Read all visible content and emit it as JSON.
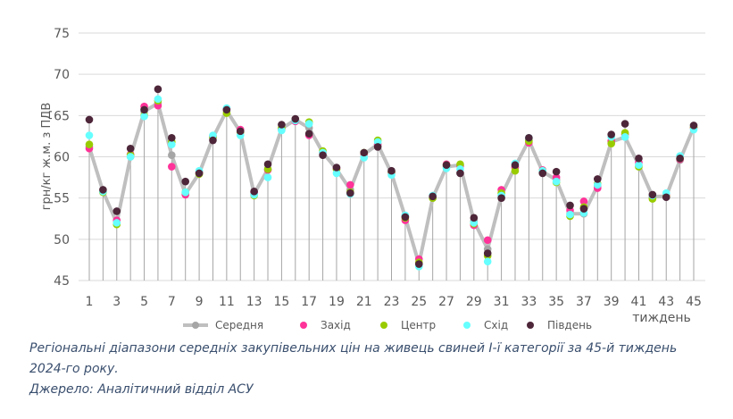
{
  "chart_data": {
    "type": "line",
    "ylabel": "грн/кг ж.м. з ПДВ",
    "xlabel": "тиждень",
    "ylim": [
      45,
      75
    ],
    "yticks": [
      45,
      50,
      55,
      60,
      65,
      70,
      75
    ],
    "x": [
      1,
      2,
      3,
      4,
      5,
      6,
      7,
      8,
      9,
      10,
      11,
      12,
      13,
      14,
      15,
      16,
      17,
      18,
      19,
      20,
      21,
      22,
      23,
      24,
      25,
      26,
      27,
      28,
      29,
      30,
      31,
      32,
      33,
      34,
      35,
      36,
      37,
      38,
      39,
      40,
      41,
      42,
      43,
      44,
      45
    ],
    "xticks": [
      1,
      3,
      5,
      7,
      9,
      11,
      13,
      15,
      17,
      19,
      21,
      23,
      25,
      27,
      29,
      31,
      33,
      35,
      37,
      39,
      41,
      43,
      45
    ],
    "grid": true,
    "legend_position": "bottom",
    "series": [
      {
        "name": "Середня",
        "color": "#a6a6a6",
        "line": true,
        "values": [
          61.2,
          55.8,
          52.0,
          60.0,
          65.5,
          66.5,
          60.2,
          55.5,
          58.0,
          62.3,
          65.6,
          63.0,
          55.5,
          58.5,
          63.4,
          64.5,
          63.5,
          60.5,
          58.5,
          56.0,
          60.3,
          61.5,
          58.0,
          52.7,
          47.0,
          55.0,
          58.8,
          59.0,
          52.2,
          48.8,
          55.3,
          58.8,
          62.0,
          58.2,
          57.2,
          53.1,
          53.1,
          56.5,
          61.8,
          62.4,
          59.0,
          55.2,
          55.2,
          59.6,
          63.6
        ]
      },
      {
        "name": "Захід",
        "color": "#ff3399",
        "values": [
          61.0,
          55.8,
          52.3,
          60.3,
          66.1,
          66.2,
          58.8,
          55.4,
          58.1,
          62.5,
          65.8,
          63.3,
          55.7,
          58.4,
          63.3,
          64.3,
          62.6,
          60.5,
          58.6,
          56.6,
          60.4,
          61.5,
          58.1,
          52.3,
          47.6,
          55.2,
          59.1,
          58.9,
          51.7,
          49.9,
          56.0,
          58.7,
          61.7,
          58.4,
          57.5,
          53.5,
          54.6,
          56.2,
          61.9,
          62.7,
          59.3,
          55.0,
          55.3,
          59.7,
          63.5
        ]
      },
      {
        "name": "Центр",
        "color": "#99cc00",
        "values": [
          61.5,
          55.7,
          51.8,
          60.2,
          65.0,
          66.8,
          61.8,
          55.7,
          57.9,
          62.4,
          65.3,
          63.0,
          55.3,
          58.5,
          63.5,
          64.5,
          64.2,
          60.7,
          58.5,
          55.7,
          60.5,
          62.0,
          58.2,
          52.6,
          47.2,
          55.0,
          59.0,
          59.1,
          51.9,
          48.0,
          55.6,
          58.3,
          61.9,
          58.3,
          56.9,
          52.8,
          53.9,
          56.7,
          61.6,
          62.9,
          58.8,
          54.9,
          55.2,
          59.8,
          63.6
        ]
      },
      {
        "name": "Схід",
        "color": "#66ffff",
        "values": [
          62.6,
          55.8,
          52.0,
          60.0,
          64.9,
          67.0,
          61.5,
          55.7,
          58.3,
          62.6,
          65.9,
          62.6,
          55.4,
          57.5,
          63.2,
          64.4,
          64.0,
          60.5,
          58.0,
          55.5,
          59.9,
          61.8,
          57.8,
          52.9,
          46.7,
          55.3,
          58.6,
          58.5,
          52.0,
          47.3,
          55.3,
          59.2,
          62.3,
          58.3,
          57.0,
          53.0,
          53.2,
          56.6,
          62.4,
          62.4,
          59.0,
          55.3,
          55.6,
          60.1,
          63.3
        ]
      },
      {
        "name": "Південь",
        "color": "#4d2639",
        "values": [
          64.5,
          56.0,
          53.4,
          61.0,
          65.7,
          68.2,
          62.3,
          57.0,
          58.0,
          62.0,
          65.7,
          63.1,
          55.8,
          59.1,
          63.9,
          64.6,
          62.8,
          60.2,
          58.7,
          55.6,
          60.5,
          61.2,
          58.3,
          52.7,
          47.0,
          55.2,
          59.0,
          58.0,
          52.6,
          48.3,
          55.0,
          59.0,
          62.3,
          58.0,
          58.2,
          54.1,
          53.7,
          57.3,
          62.7,
          64.0,
          59.8,
          55.4,
          55.1,
          59.8,
          63.8
        ]
      }
    ]
  },
  "caption": {
    "line1": "Регіональні діапазони середніх закупівельних цін на живець свиней І-ї категорії за 45-й тиждень",
    "line2": "2024-го року.",
    "source": "Джерело: Аналітичний відділ АСУ"
  }
}
